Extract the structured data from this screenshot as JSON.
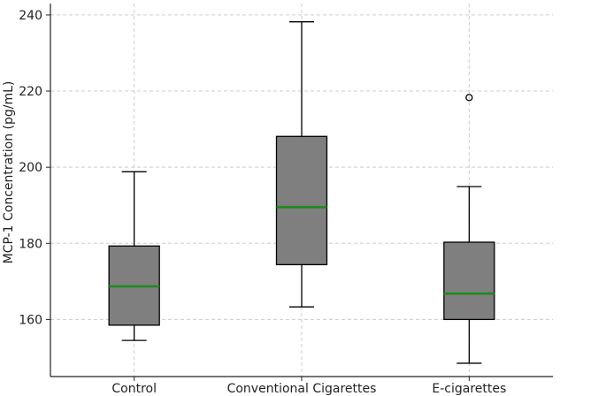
{
  "chart_data": {
    "type": "box",
    "title": "",
    "xlabel": "",
    "ylabel": "MCP-1 Concentration (pg/mL)",
    "ylim": [
      145,
      243
    ],
    "yticks": [
      160,
      180,
      200,
      220,
      240
    ],
    "grid": true,
    "categories": [
      "Control",
      "Conventional Cigarettes",
      "E-cigarettes"
    ],
    "boxes": [
      {
        "category": "Control",
        "whisker_low": 154.5,
        "q1": 158.5,
        "median": 168.7,
        "q3": 179.3,
        "whisker_high": 198.8,
        "outliers": []
      },
      {
        "category": "Conventional Cigarettes",
        "whisker_low": 163.3,
        "q1": 174.4,
        "median": 189.5,
        "q3": 208.1,
        "whisker_high": 238.2,
        "outliers": []
      },
      {
        "category": "E-cigarettes",
        "whisker_low": 148.5,
        "q1": 160.0,
        "median": 166.8,
        "q3": 180.3,
        "whisker_high": 194.9,
        "outliers": [
          218.3
        ]
      }
    ],
    "colors": {
      "box_fill": "#7f7f7f",
      "median": "#1a8a1a",
      "lines": "#000000",
      "grid": "#cccccc"
    }
  }
}
